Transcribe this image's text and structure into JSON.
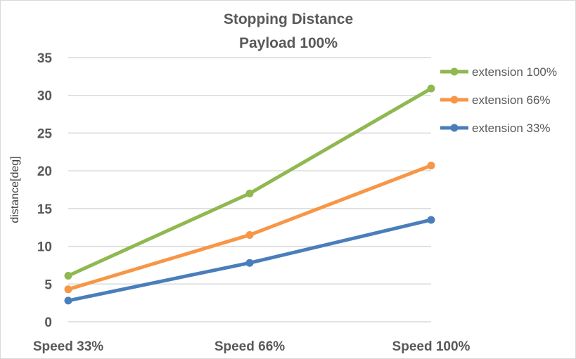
{
  "chart_data": {
    "type": "line",
    "title": [
      "Stopping Distance",
      "Payload 100%"
    ],
    "xlabel": "",
    "ylabel": "distance[deg]",
    "categories": [
      "Speed 33%",
      "Speed 66%",
      "Speed 100%"
    ],
    "ylim": [
      0,
      35
    ],
    "yticks": [
      0,
      5,
      10,
      15,
      20,
      25,
      30,
      35
    ],
    "grid": true,
    "legend_position": "right",
    "series": [
      {
        "name": "extension 100%",
        "color": "#8fb850",
        "values": [
          6.1,
          17.0,
          30.9
        ]
      },
      {
        "name": "extension 66%",
        "color": "#f79646",
        "values": [
          4.3,
          11.5,
          20.7
        ]
      },
      {
        "name": "extension 33%",
        "color": "#4a7ebb",
        "values": [
          2.8,
          7.8,
          13.5
        ]
      }
    ]
  }
}
